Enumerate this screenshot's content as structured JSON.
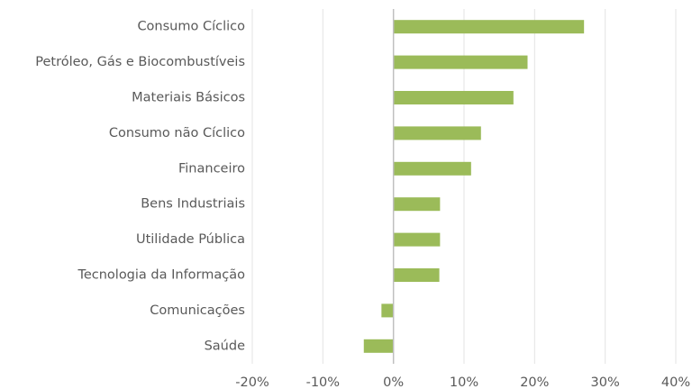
{
  "chart_data": {
    "type": "bar",
    "orientation": "horizontal",
    "categories": [
      "Consumo Cíclico",
      "Petróleo, Gás e Biocombustíveis",
      "Materiais Básicos",
      "Consumo não Cíclico",
      "Financeiro",
      "Bens Industriais",
      "Utilidade Pública",
      "Tecnologia da Informação",
      "Comunicações",
      "Saúde"
    ],
    "values": [
      27,
      19,
      17,
      12.4,
      11,
      6.6,
      6.6,
      6.5,
      -1.7,
      -4.2
    ],
    "color": "#9bbb59",
    "xlim": [
      -20,
      40
    ],
    "xticks": [
      {
        "value": -20,
        "label": "-20%"
      },
      {
        "value": -10,
        "label": "-10%"
      },
      {
        "value": 0,
        "label": "0%"
      },
      {
        "value": 10,
        "label": "10%"
      },
      {
        "value": 20,
        "label": "20%"
      },
      {
        "value": 30,
        "label": "30%"
      },
      {
        "value": 40,
        "label": "40%"
      }
    ],
    "grid": true
  }
}
